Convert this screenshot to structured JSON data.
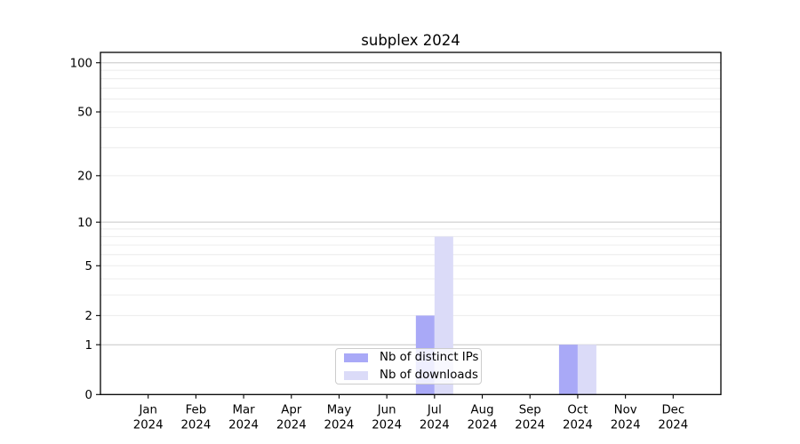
{
  "chart_data": {
    "type": "bar",
    "title": "subplex 2024",
    "categories": [
      "Jan",
      "Feb",
      "Mar",
      "Apr",
      "May",
      "Jun",
      "Jul",
      "Aug",
      "Sep",
      "Oct",
      "Nov",
      "Dec"
    ],
    "x_tick_second_line": "2024",
    "series": [
      {
        "name": "Nb of distinct IPs",
        "color": "#a9a9f7",
        "values": [
          0,
          0,
          0,
          0,
          0,
          0,
          2,
          0,
          0,
          1,
          0,
          0
        ]
      },
      {
        "name": "Nb of downloads",
        "color": "#dbdbf8",
        "values": [
          0,
          0,
          0,
          0,
          0,
          0,
          8,
          0,
          0,
          1,
          0,
          0
        ]
      }
    ],
    "y_axis": {
      "scale": "log1p",
      "ticks": [
        0,
        1,
        2,
        5,
        10,
        20,
        50,
        100
      ],
      "major_gridlines": [
        1,
        10,
        100
      ],
      "minor_gridlines": [
        2,
        3,
        4,
        5,
        6,
        7,
        8,
        9,
        20,
        30,
        40,
        50,
        60,
        70,
        80,
        90
      ],
      "ylim": [
        0,
        116
      ]
    },
    "legend": {
      "position": "lower center"
    },
    "colors": {
      "axis": "#000000",
      "major_grid": "#c6c6c6",
      "minor_grid": "#ececec",
      "legend_border": "#cccccc",
      "legend_bg": "rgba(255,255,255,0.8)",
      "background": "#ffffff"
    }
  }
}
